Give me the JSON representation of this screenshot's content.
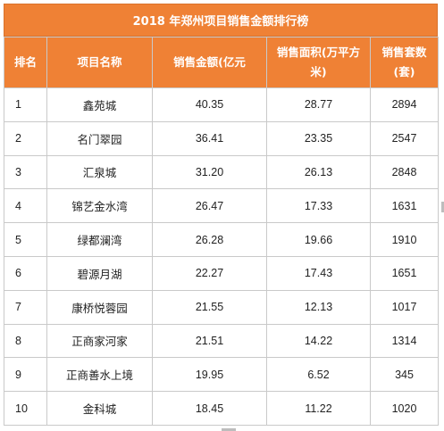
{
  "title": "2018 年郑州项目销售金额排行榜",
  "header": {
    "rank": "排名",
    "project": "项目名称",
    "amount": "销售金额(亿元",
    "area": "销售面积(万平方米)",
    "units": "销售套数(套)"
  },
  "rows": [
    {
      "rank": "1",
      "name": "鑫苑城",
      "amount": "40.35",
      "area": "28.77",
      "units": "2894"
    },
    {
      "rank": "2",
      "name": "名门翠园",
      "amount": "36.41",
      "area": "23.35",
      "units": "2547"
    },
    {
      "rank": "3",
      "name": "汇泉城",
      "amount": "31.20",
      "area": "26.13",
      "units": "2848"
    },
    {
      "rank": "4",
      "name": "锦艺金水湾",
      "amount": "26.47",
      "area": "17.33",
      "units": "1631"
    },
    {
      "rank": "5",
      "name": "绿都澜湾",
      "amount": "26.28",
      "area": "19.66",
      "units": "1910"
    },
    {
      "rank": "6",
      "name": "碧源月湖",
      "amount": "22.27",
      "area": "17.43",
      "units": "1651"
    },
    {
      "rank": "7",
      "name": "康桥悦蓉园",
      "amount": "21.55",
      "area": "12.13",
      "units": "1017"
    },
    {
      "rank": "8",
      "name": "正商家河家",
      "amount": "21.51",
      "area": "14.22",
      "units": "1314"
    },
    {
      "rank": "9",
      "name": "正商善水上境",
      "amount": "19.95",
      "area": "6.52",
      "units": "345"
    },
    {
      "rank": "10",
      "name": "金科城",
      "amount": "18.45",
      "area": "11.22",
      "units": "1020"
    }
  ],
  "colors": {
    "header_bg": "#ef8135",
    "header_text": "#ffffff",
    "grid": "#c9c9c9"
  }
}
